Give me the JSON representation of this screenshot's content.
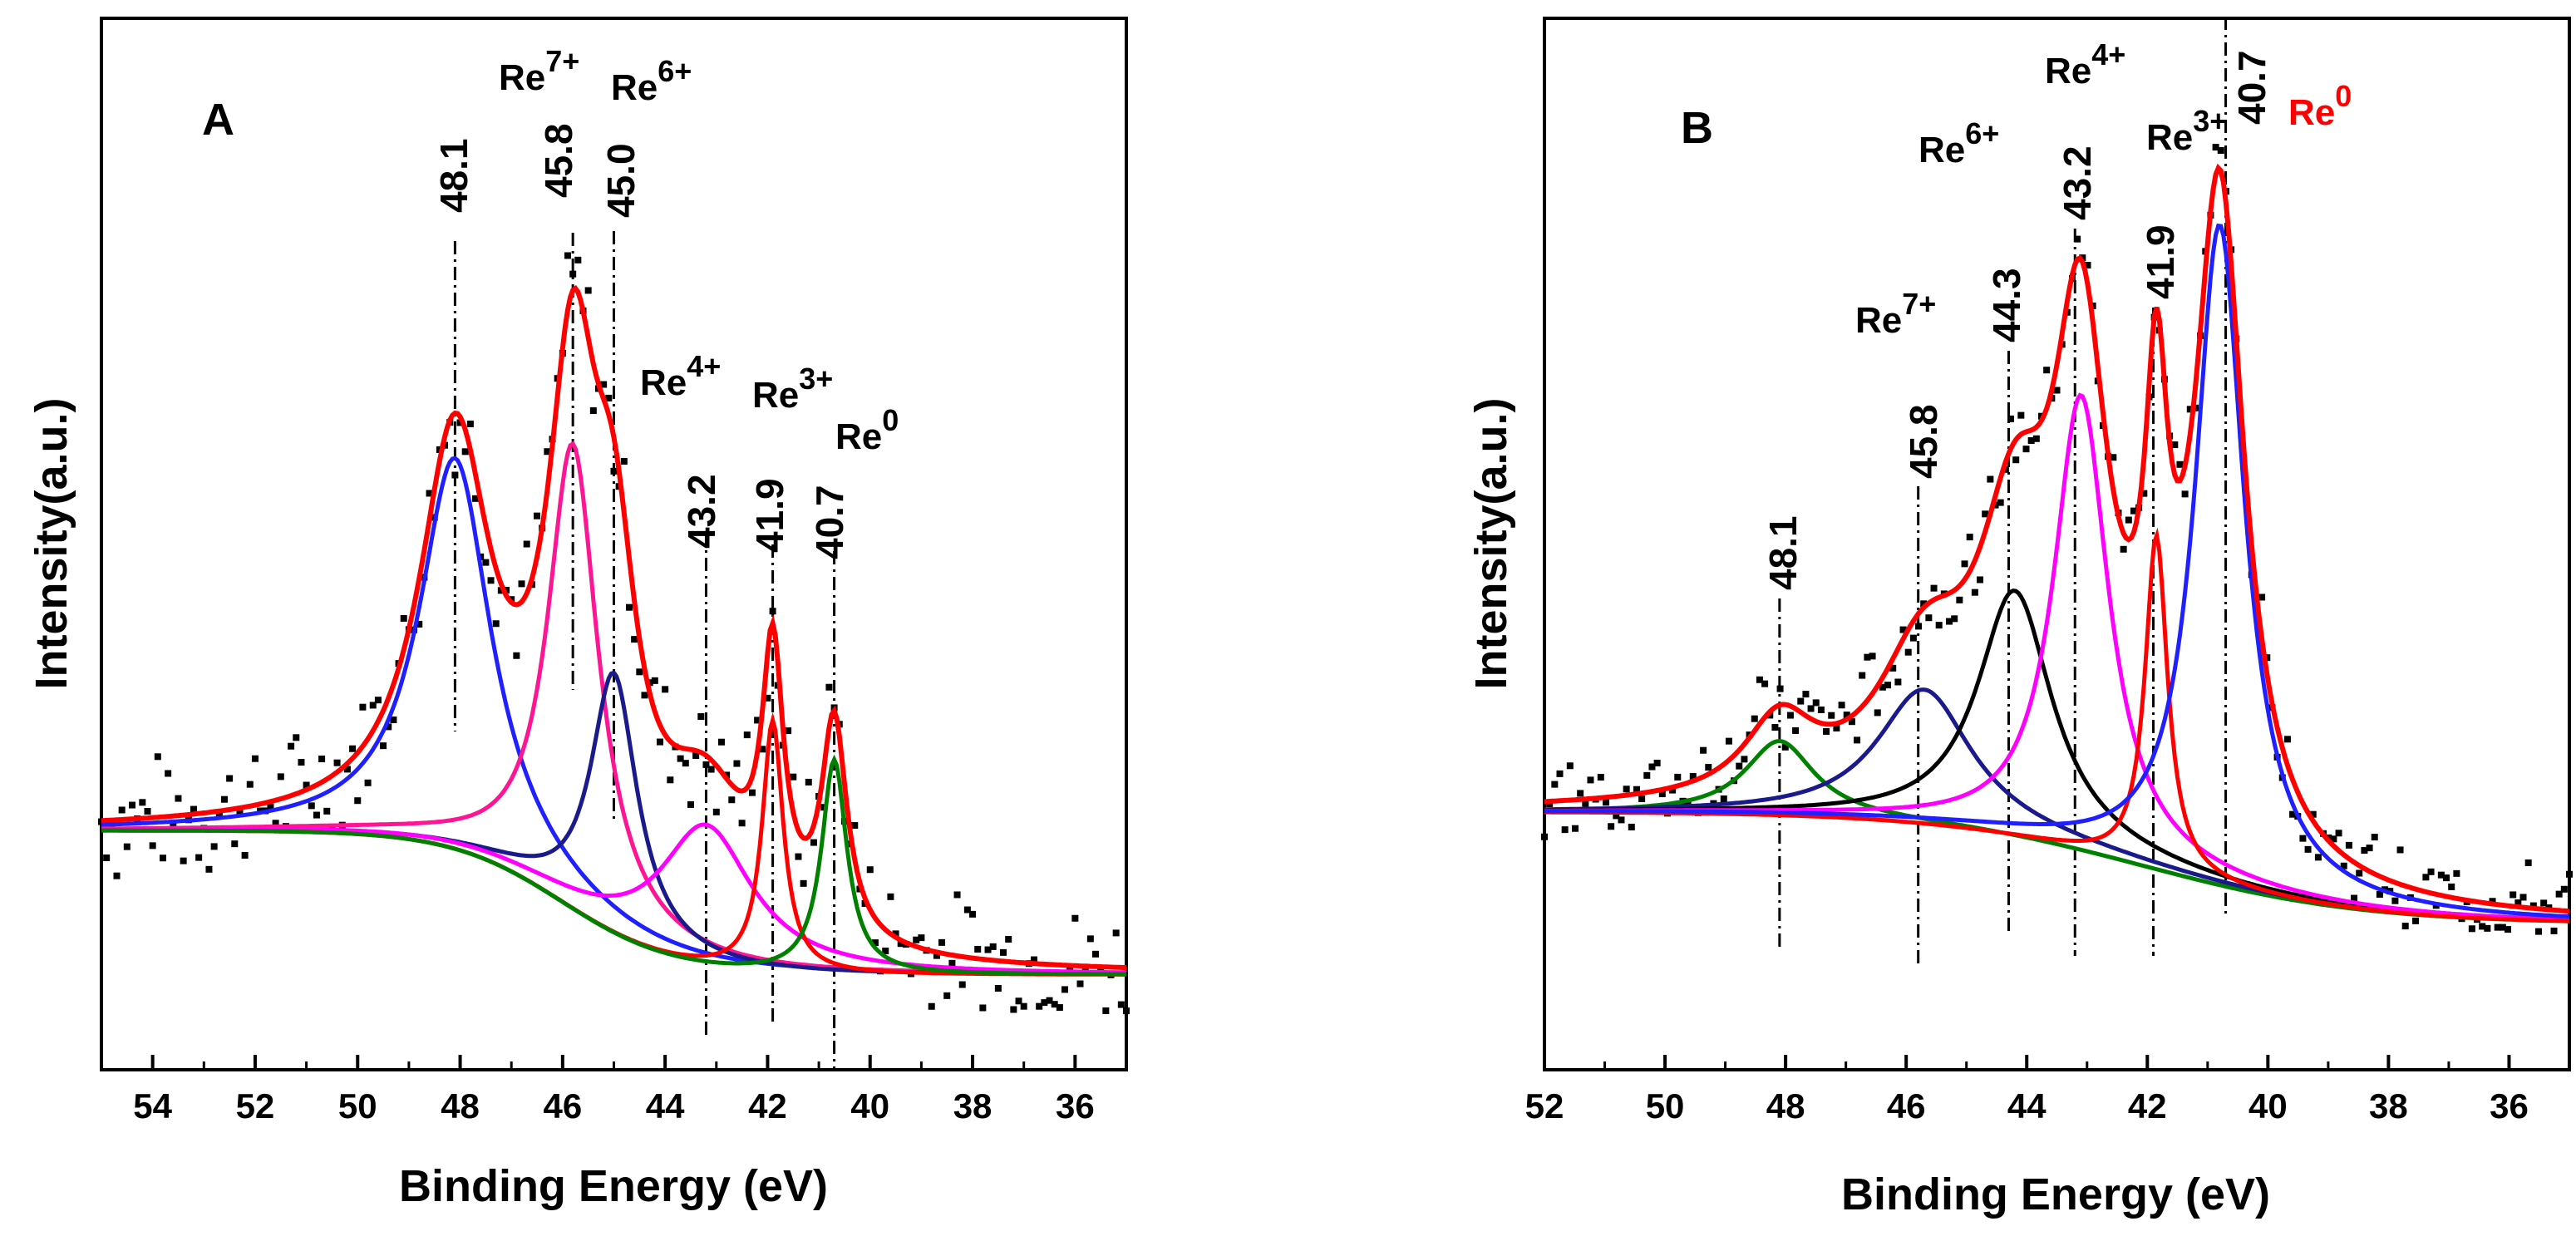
{
  "figure": {
    "panels": [
      {
        "id": "A",
        "label": "A",
        "xlabel": "Binding Energy (eV)",
        "ylabel": "Intensity(a.u.)",
        "xlim": [
          55,
          35
        ],
        "ticks": [
          54,
          52,
          50,
          48,
          46,
          44,
          42,
          40,
          38,
          36
        ],
        "tick_labels": [
          "54",
          "52",
          "50",
          "48",
          "46",
          "44",
          "42",
          "40",
          "38",
          "36"
        ],
        "peak_positions": [
          "48.1",
          "45.8",
          "45.0",
          "43.2",
          "41.9",
          "40.7"
        ],
        "states": [
          {
            "base": "Re",
            "sup": "7+",
            "color": "#000000"
          },
          {
            "base": "Re",
            "sup": "6+",
            "color": "#000000"
          },
          {
            "base": "Re",
            "sup": "4+",
            "color": "#000000"
          },
          {
            "base": "Re",
            "sup": "3+",
            "color": "#000000"
          },
          {
            "base": "Re",
            "sup": "0",
            "color": "#000000"
          }
        ]
      },
      {
        "id": "B",
        "label": "B",
        "xlabel": "Binding Energy (eV)",
        "ylabel": "Intensity(a.u.)",
        "xlim": [
          52,
          35
        ],
        "ticks": [
          52,
          50,
          48,
          46,
          44,
          42,
          40,
          38,
          36
        ],
        "tick_labels": [
          "52",
          "50",
          "48",
          "46",
          "44",
          "42",
          "40",
          "38",
          "36"
        ],
        "peak_positions": [
          "48.1",
          "45.8",
          "44.3",
          "43.2",
          "41.9",
          "40.7"
        ],
        "states": [
          {
            "base": "Re",
            "sup": "7+",
            "color": "#000000"
          },
          {
            "base": "Re",
            "sup": "6+",
            "color": "#000000"
          },
          {
            "base": "Re",
            "sup": "4+",
            "color": "#000000"
          },
          {
            "base": "Re",
            "sup": "3+",
            "color": "#000000"
          },
          {
            "base": "Re",
            "sup": "0",
            "color": "#ff0000"
          }
        ]
      }
    ]
  },
  "chart_data": [
    {
      "type": "line",
      "panel": "A",
      "title": "",
      "xlabel": "Binding Energy (eV)",
      "ylabel": "Intensity(a.u.)",
      "xlim": [
        55,
        35
      ],
      "ylim": [
        0,
        1
      ],
      "reversed_x": true,
      "grid": false,
      "background": {
        "high": 0.215,
        "low": 0.06,
        "center": 46.0,
        "width": 1.1
      },
      "peaks": [
        {
          "name": "Re 48.1",
          "center": 48.1,
          "height": 0.42,
          "fwhm": 1.7,
          "color": "#1f1fff"
        },
        {
          "name": "Re7+ 45.8",
          "center": 45.8,
          "height": 0.5,
          "fwhm": 1.2,
          "color": "#ff1493"
        },
        {
          "name": "Re6+ 45.0",
          "center": 45.0,
          "height": 0.28,
          "fwhm": 1.1,
          "color": "#1a1a8c"
        },
        {
          "name": "Re4+ 43.2",
          "center": 43.2,
          "height": 0.15,
          "fwhm": 2.2,
          "color": "#ff00ff"
        },
        {
          "name": "Re3+ 41.9",
          "center": 41.9,
          "height": 0.27,
          "fwhm": 0.5,
          "color": "#ff0000"
        },
        {
          "name": "Re0 40.7",
          "center": 40.7,
          "height": 0.23,
          "fwhm": 0.6,
          "color": "#008000"
        }
      ],
      "envelope_color": "#ff0000",
      "scatter_noise": 0.03
    },
    {
      "type": "line",
      "panel": "B",
      "title": "",
      "xlabel": "Binding Energy (eV)",
      "ylabel": "Intensity(a.u.)",
      "xlim": [
        52,
        35
      ],
      "ylim": [
        0,
        1
      ],
      "reversed_x": true,
      "grid": false,
      "background": {
        "high": 0.235,
        "low": 0.115,
        "center": 42.0,
        "width": 1.8
      },
      "peaks": [
        {
          "name": "48.1",
          "center": 48.1,
          "height": 0.08,
          "fwhm": 1.4,
          "color": "#008000"
        },
        {
          "name": "Re7+ 45.8",
          "center": 45.7,
          "height": 0.145,
          "fwhm": 1.9,
          "color": "#1a1a8c"
        },
        {
          "name": "Re6+ 44.3",
          "center": 44.2,
          "height": 0.265,
          "fwhm": 1.5,
          "color": "#000000"
        },
        {
          "name": "Re4+ 43.2",
          "center": 43.1,
          "height": 0.49,
          "fwhm": 1.1,
          "color": "#ff00ff"
        },
        {
          "name": "Re3+ 41.9",
          "center": 41.85,
          "height": 0.36,
          "fwhm": 0.45,
          "color": "#ff0000"
        },
        {
          "name": "Re0 40.7",
          "center": 40.8,
          "height": 0.71,
          "fwhm": 1.0,
          "color": "#1f1fff"
        }
      ],
      "envelope_color": "#ff0000",
      "scatter_noise": 0.02
    }
  ]
}
